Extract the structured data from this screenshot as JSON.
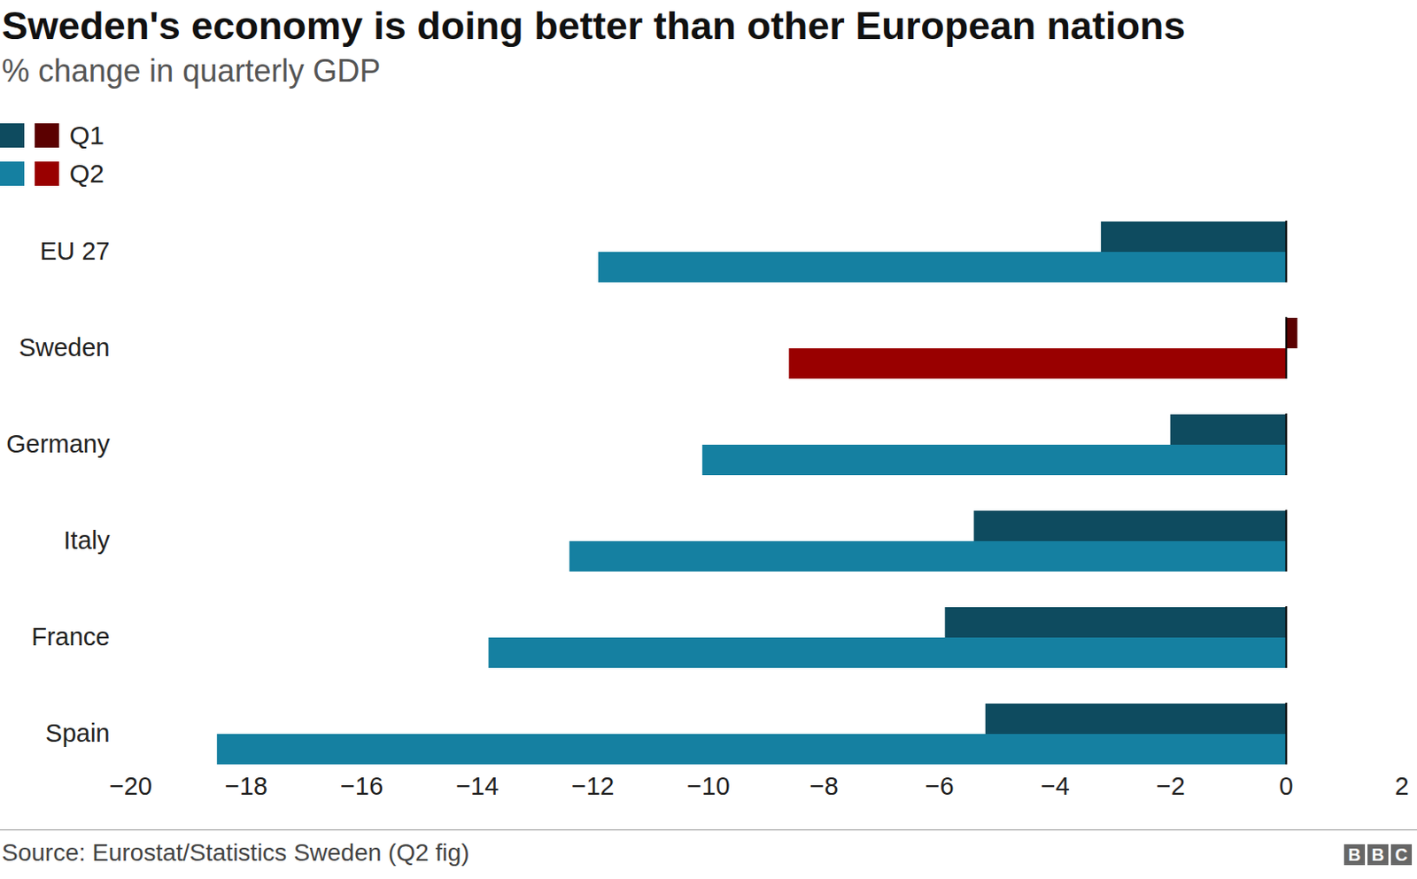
{
  "chart_data": {
    "type": "bar",
    "orientation": "horizontal",
    "title": "Sweden's economy is doing better than other European nations",
    "subtitle": "% change in quarterly GDP",
    "categories": [
      "EU 27",
      "Sweden",
      "Germany",
      "Italy",
      "France",
      "Spain"
    ],
    "series": [
      {
        "name": "Q1",
        "values": [
          -3.2,
          0.2,
          -2.0,
          -5.4,
          -5.9,
          -5.2
        ],
        "colors": [
          "#0e4b5f",
          "#5b0000",
          "#0e4b5f",
          "#0e4b5f",
          "#0e4b5f",
          "#0e4b5f"
        ]
      },
      {
        "name": "Q2",
        "values": [
          -11.9,
          -8.6,
          -10.1,
          -12.4,
          -13.8,
          -18.5
        ],
        "colors": [
          "#1580a1",
          "#990000",
          "#1580a1",
          "#1580a1",
          "#1580a1",
          "#1580a1"
        ]
      }
    ],
    "xlim": [
      -20,
      2
    ],
    "xticks": [
      -20,
      -18,
      -16,
      -14,
      -12,
      -10,
      -8,
      -6,
      -4,
      -2,
      0,
      2
    ],
    "grid": false,
    "legend": "top-left",
    "source": "Source: Eurostat/Statistics Sweden (Q2 fig)",
    "logo": "BBC"
  }
}
